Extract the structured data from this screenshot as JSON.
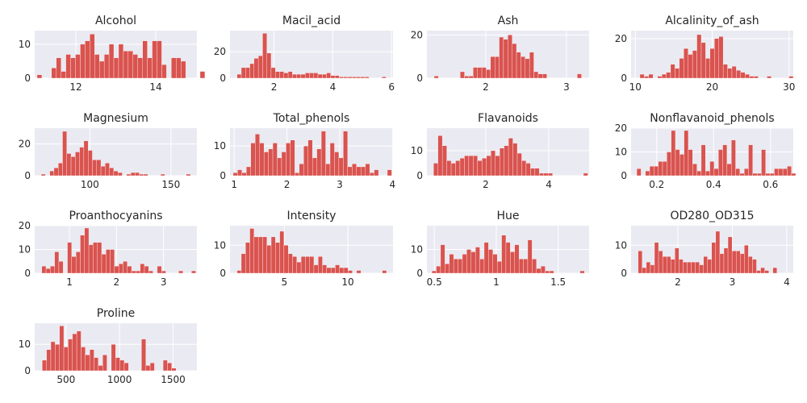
{
  "chart_data": [
    {
      "type": "bar",
      "title": "Alcohol",
      "xlim": [
        10.97,
        15.03
      ],
      "ylim": [
        0,
        14
      ],
      "xticks": [
        12,
        14
      ],
      "yticks": [
        0,
        10
      ],
      "bins": {
        "start": 11.03,
        "width": 0.12,
        "counts": [
          1,
          0,
          0,
          3,
          6,
          2,
          7,
          6,
          7,
          10,
          11,
          13,
          7,
          5,
          7,
          10,
          6,
          10,
          8,
          8,
          7,
          6,
          11,
          6,
          11,
          11,
          4,
          0,
          6,
          6,
          5,
          0,
          0,
          0,
          2
        ]
      }
    },
    {
      "type": "bar",
      "title": "Macil_acid",
      "xlim": [
        0.5,
        6.05
      ],
      "ylim": [
        0,
        36
      ],
      "xticks": [
        2,
        4,
        6
      ],
      "yticks": [
        0,
        20
      ],
      "bins": {
        "start": 0.74,
        "width": 0.145,
        "counts": [
          3,
          8,
          8,
          11,
          15,
          17,
          34,
          19,
          8,
          5,
          5,
          4,
          5,
          3,
          3,
          3,
          4,
          4,
          4,
          3,
          3,
          4,
          2,
          2,
          1,
          1,
          1,
          1,
          1,
          1,
          1,
          0,
          0,
          0,
          1
        ]
      }
    },
    {
      "type": "bar",
      "title": "Ash",
      "xlim": [
        1.27,
        3.28
      ],
      "ylim": [
        0,
        22
      ],
      "xticks": [
        2,
        3
      ],
      "yticks": [
        0,
        20
      ],
      "bins": {
        "start": 1.36,
        "width": 0.0537,
        "counts": [
          1,
          0,
          0,
          0,
          0,
          0,
          3,
          1,
          1,
          5,
          5,
          5,
          4,
          10,
          10,
          19,
          18,
          20,
          16,
          12,
          10,
          9,
          12,
          3,
          2,
          2,
          0,
          0,
          0,
          0,
          0,
          0,
          0,
          2
        ]
      }
    },
    {
      "type": "bar",
      "title": "Alcalinity_of_ash",
      "xlim": [
        9.45,
        30.55
      ],
      "ylim": [
        0,
        24
      ],
      "xticks": [
        10,
        20,
        30
      ],
      "yticks": [
        0,
        20
      ],
      "bins": {
        "start": 10.6,
        "width": 0.57,
        "counts": [
          2,
          1,
          2,
          0,
          1,
          2,
          3,
          7,
          5,
          10,
          15,
          12,
          14,
          22,
          18,
          10,
          15,
          20,
          21,
          7,
          5,
          6,
          4,
          3,
          2,
          1,
          1,
          0,
          0,
          1,
          0,
          0,
          0,
          0,
          1
        ]
      }
    },
    {
      "type": "bar",
      "title": "Magnesium",
      "xlim": [
        66,
        166
      ],
      "ylim": [
        0,
        30
      ],
      "xticks": [
        100,
        150
      ],
      "yticks": [
        0,
        20
      ],
      "bins": {
        "start": 70,
        "width": 2.63,
        "counts": [
          1,
          0,
          3,
          5,
          8,
          28,
          14,
          12,
          15,
          18,
          22,
          16,
          10,
          10,
          6,
          8,
          5,
          3,
          2,
          0,
          1,
          2,
          2,
          1,
          1,
          0,
          0,
          0,
          1,
          0,
          0,
          0,
          0,
          0,
          1
        ]
      }
    },
    {
      "type": "bar",
      "title": "Total_phenols",
      "xlim": [
        0.92,
        4.01
      ],
      "ylim": [
        0,
        16
      ],
      "xticks": [
        1,
        2,
        3,
        4
      ],
      "yticks": [
        0,
        10
      ],
      "bins": {
        "start": 0.98,
        "width": 0.0835,
        "counts": [
          1,
          2,
          1,
          3,
          11,
          14,
          11,
          8,
          9,
          11,
          6,
          8,
          11,
          12,
          1,
          4,
          10,
          12,
          6,
          9,
          15,
          4,
          11,
          8,
          6,
          15,
          3,
          4,
          3,
          3,
          4,
          1,
          2,
          0,
          0,
          2
        ]
      }
    },
    {
      "type": "bar",
      "title": "Flavanoids",
      "xlim": [
        0.13,
        5.28
      ],
      "ylim": [
        0,
        19
      ],
      "xticks": [
        2,
        4
      ],
      "yticks": [
        0,
        10
      ],
      "bins": {
        "start": 0.34,
        "width": 0.14,
        "counts": [
          5,
          16,
          12,
          6,
          5,
          6,
          7,
          8,
          8,
          8,
          6,
          7,
          8,
          10,
          8,
          11,
          12,
          15,
          13,
          9,
          6,
          5,
          3,
          3,
          1,
          1,
          1,
          0,
          0,
          0,
          0,
          0,
          0,
          0,
          1
        ]
      }
    },
    {
      "type": "bar",
      "title": "Nonflavanoid_phenols",
      "xlim": [
        0.11,
        0.68
      ],
      "ylim": [
        0,
        20
      ],
      "xticks": [
        0.2,
        0.4,
        0.6
      ],
      "yticks": [
        0,
        10,
        20
      ],
      "bins": {
        "start": 0.13,
        "width": 0.0151,
        "counts": [
          3,
          0,
          2,
          4,
          4,
          6,
          6,
          10,
          19,
          11,
          9,
          19,
          11,
          5,
          2,
          13,
          2,
          6,
          3,
          11,
          13,
          5,
          15,
          3,
          1,
          3,
          13,
          1,
          1,
          11,
          1,
          1,
          3,
          3,
          3,
          4,
          1
        ]
      }
    },
    {
      "type": "bar",
      "title": "Proanthocyanins",
      "xlim": [
        0.26,
        3.71
      ],
      "ylim": [
        0,
        20
      ],
      "xticks": [
        1,
        2,
        3
      ],
      "yticks": [
        0,
        10,
        20
      ],
      "bins": {
        "start": 0.41,
        "width": 0.091,
        "counts": [
          3,
          2,
          3,
          9,
          5,
          0,
          13,
          7,
          9,
          16,
          19,
          12,
          13,
          13,
          8,
          10,
          10,
          3,
          4,
          5,
          3,
          1,
          1,
          4,
          3,
          1,
          0,
          3,
          1,
          0,
          0,
          0,
          1,
          0,
          0,
          1
        ]
      }
    },
    {
      "type": "bar",
      "title": "Intensity",
      "xlim": [
        0.73,
        13.55
      ],
      "ylim": [
        0,
        17
      ],
      "xticks": [
        5,
        10
      ],
      "yticks": [
        0,
        10
      ],
      "bins": {
        "start": 1.28,
        "width": 0.336,
        "counts": [
          1,
          7,
          11,
          16,
          13,
          13,
          13,
          10,
          13,
          11,
          15,
          10,
          7,
          6,
          4,
          6,
          6,
          6,
          3,
          6,
          3,
          2,
          2,
          3,
          2,
          2,
          1,
          0,
          1,
          0,
          0,
          0,
          0,
          0,
          1
        ]
      }
    },
    {
      "type": "bar",
      "title": "Hue",
      "xlim": [
        0.44,
        1.75
      ],
      "ylim": [
        0,
        20
      ],
      "xticks": [
        0.5,
        1.0,
        1.5
      ],
      "yticks": [
        0,
        10
      ],
      "bins": {
        "start": 0.48,
        "width": 0.0352,
        "counts": [
          1,
          3,
          12,
          4,
          8,
          6,
          6,
          8,
          10,
          9,
          11,
          6,
          13,
          10,
          8,
          5,
          16,
          13,
          9,
          12,
          6,
          6,
          14,
          6,
          2,
          3,
          1,
          1,
          0,
          0,
          0,
          0,
          0,
          0,
          1
        ]
      }
    },
    {
      "type": "bar",
      "title": "OD280_OD315",
      "xlim": [
        1.14,
        4.12
      ],
      "ylim": [
        0,
        17
      ],
      "xticks": [
        2,
        3,
        4
      ],
      "yticks": [
        0,
        10
      ],
      "bins": {
        "start": 1.27,
        "width": 0.075,
        "counts": [
          8,
          2,
          4,
          3,
          11,
          8,
          6,
          6,
          5,
          9,
          5,
          4,
          4,
          4,
          4,
          3,
          6,
          5,
          11,
          15,
          7,
          9,
          13,
          8,
          8,
          7,
          10,
          6,
          5,
          1,
          2,
          1,
          0,
          2
        ]
      }
    },
    {
      "type": "bar",
      "title": "Proline",
      "xlim": [
        208,
        1722
      ],
      "ylim": [
        0,
        18
      ],
      "xticks": [
        500,
        1000,
        1500
      ],
      "yticks": [
        0,
        10
      ],
      "bins": {
        "start": 278,
        "width": 40.3,
        "counts": [
          4,
          8,
          11,
          10,
          17,
          9,
          12,
          14,
          15,
          9,
          6,
          8,
          5,
          2,
          6,
          0,
          10,
          5,
          4,
          3,
          0,
          0,
          0,
          12,
          2,
          3,
          0,
          0,
          4,
          3,
          1,
          0,
          0,
          0,
          0
        ]
      }
    }
  ]
}
